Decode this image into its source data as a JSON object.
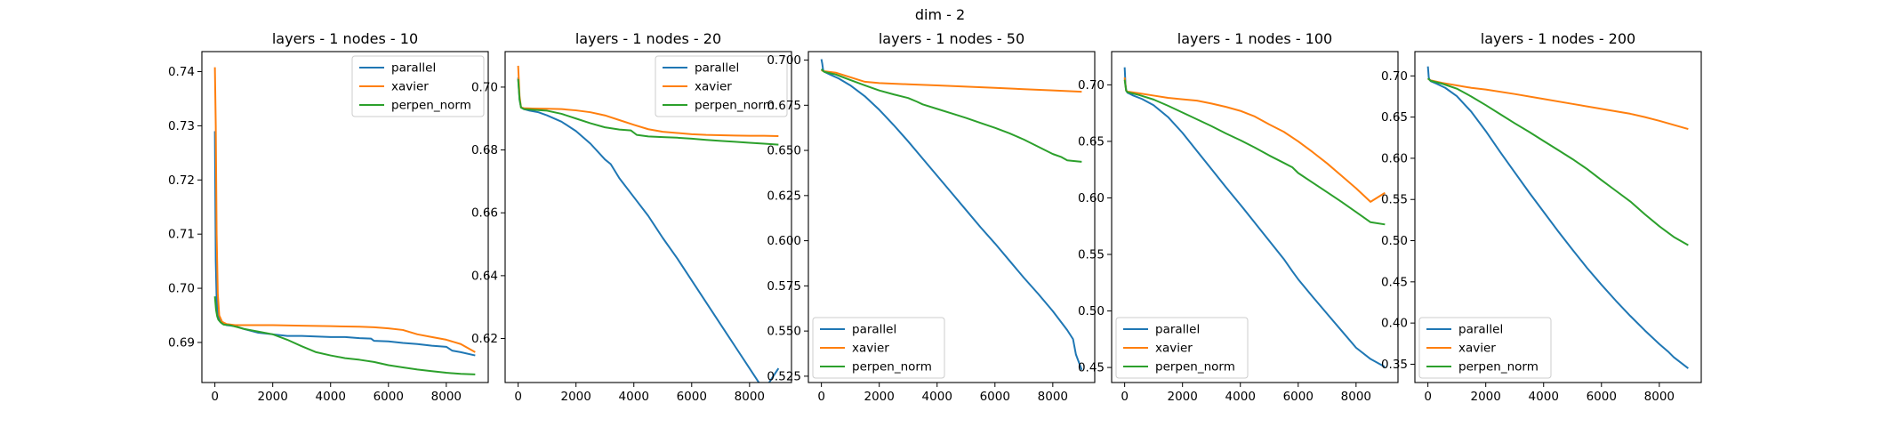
{
  "figure": {
    "suptitle": "dim - 2"
  },
  "colors": {
    "parallel": "#1f77b4",
    "xavier": "#ff7f0e",
    "perpen_norm": "#2ca02c"
  },
  "chart_data": [
    {
      "type": "line",
      "title": "layers - 1 nodes - 10",
      "xlim": [
        -450,
        9450
      ],
      "ylim": [
        0.6826,
        0.7437
      ],
      "xticks": [
        0,
        2000,
        4000,
        6000,
        8000
      ],
      "xtick_labels": [
        "0",
        "2000",
        "4000",
        "6000",
        "8000"
      ],
      "yticks": [
        0.69,
        0.7,
        0.71,
        0.72,
        0.73,
        0.74
      ],
      "ytick_labels": [
        "0.69",
        "0.70",
        "0.71",
        "0.72",
        "0.73",
        "0.74"
      ],
      "legend": "upper right",
      "series": [
        {
          "name": "parallel",
          "x": [
            0,
            30,
            60,
            100,
            150,
            250,
            400,
            700,
            1000,
            1500,
            2000,
            2500,
            3000,
            3500,
            4000,
            4500,
            5000,
            5400,
            5500,
            6000,
            6500,
            7000,
            7500,
            8000,
            8200,
            8500,
            9000
          ],
          "y": [
            0.729,
            0.705,
            0.698,
            0.695,
            0.6942,
            0.6935,
            0.6932,
            0.693,
            0.6925,
            0.6918,
            0.6915,
            0.6912,
            0.6912,
            0.6911,
            0.691,
            0.691,
            0.6908,
            0.6907,
            0.6903,
            0.6902,
            0.6899,
            0.6897,
            0.6894,
            0.6892,
            0.6885,
            0.6882,
            0.6876
          ]
        },
        {
          "name": "xavier",
          "x": [
            0,
            30,
            60,
            100,
            150,
            250,
            400,
            700,
            1000,
            2000,
            3000,
            4000,
            5000,
            5500,
            6000,
            6500,
            7000,
            7500,
            8000,
            8500,
            9000
          ],
          "y": [
            0.7408,
            0.73,
            0.71,
            0.699,
            0.695,
            0.6938,
            0.6934,
            0.6932,
            0.6932,
            0.6932,
            0.6931,
            0.693,
            0.6929,
            0.6928,
            0.6926,
            0.6923,
            0.6915,
            0.691,
            0.6905,
            0.6897,
            0.6882
          ]
        },
        {
          "name": "perpen_norm",
          "x": [
            0,
            40,
            80,
            120,
            200,
            300,
            500,
            800,
            1000,
            1500,
            2000,
            2500,
            3000,
            3500,
            4000,
            4500,
            5000,
            5500,
            6000,
            6500,
            7000,
            7500,
            8000,
            8500,
            9000
          ],
          "y": [
            0.6985,
            0.696,
            0.6948,
            0.6942,
            0.6937,
            0.6933,
            0.6932,
            0.6928,
            0.6925,
            0.692,
            0.6915,
            0.6905,
            0.6893,
            0.6882,
            0.6876,
            0.6871,
            0.6868,
            0.6864,
            0.6858,
            0.6854,
            0.685,
            0.6847,
            0.6844,
            0.6842,
            0.6841
          ]
        }
      ]
    },
    {
      "type": "line",
      "title": "layers - 1 nodes - 20",
      "xlim": [
        -450,
        9450
      ],
      "ylim": [
        0.606,
        0.7113
      ],
      "xticks": [
        0,
        2000,
        4000,
        6000,
        8000
      ],
      "xtick_labels": [
        "0",
        "2000",
        "4000",
        "6000",
        "8000"
      ],
      "yticks": [
        0.62,
        0.64,
        0.66,
        0.68,
        0.7
      ],
      "ytick_labels": [
        "0.62",
        "0.64",
        "0.66",
        "0.68",
        "0.70"
      ],
      "legend": "upper right",
      "series": [
        {
          "name": "parallel",
          "x": [
            0,
            50,
            100,
            200,
            400,
            700,
            1000,
            1500,
            2000,
            2500,
            3000,
            3200,
            3300,
            3500,
            4000,
            4500,
            5000,
            5500,
            6000,
            6500,
            7000,
            7500,
            8000,
            8500,
            9000
          ],
          "y": [
            0.703,
            0.696,
            0.6935,
            0.693,
            0.6925,
            0.692,
            0.691,
            0.689,
            0.686,
            0.682,
            0.677,
            0.6755,
            0.674,
            0.671,
            0.665,
            0.659,
            0.652,
            0.6455,
            0.6385,
            0.6315,
            0.6245,
            0.6175,
            0.6105,
            0.6035,
            0.6105
          ]
        },
        {
          "name": "xavier",
          "x": [
            0,
            50,
            100,
            200,
            500,
            1000,
            1500,
            2000,
            2500,
            3000,
            3500,
            4000,
            4500,
            5000,
            5500,
            6000,
            6500,
            7000,
            7500,
            8000,
            8500,
            9000
          ],
          "y": [
            0.7068,
            0.697,
            0.6935,
            0.6933,
            0.6932,
            0.6931,
            0.693,
            0.6926,
            0.692,
            0.691,
            0.6895,
            0.688,
            0.6866,
            0.6858,
            0.6854,
            0.685,
            0.6848,
            0.6847,
            0.6846,
            0.6845,
            0.6845,
            0.6844
          ]
        },
        {
          "name": "perpen_norm",
          "x": [
            0,
            50,
            100,
            200,
            500,
            1000,
            1500,
            2000,
            2500,
            3000,
            3500,
            3900,
            4100,
            4500,
            5000,
            5500,
            6000,
            6500,
            7000,
            7500,
            8000,
            8500,
            9000
          ],
          "y": [
            0.7025,
            0.696,
            0.6935,
            0.693,
            0.6928,
            0.6925,
            0.6915,
            0.69,
            0.6885,
            0.6872,
            0.6865,
            0.6862,
            0.6848,
            0.6843,
            0.6841,
            0.6839,
            0.6836,
            0.6832,
            0.6829,
            0.6826,
            0.6823,
            0.682,
            0.6817
          ]
        }
      ]
    },
    {
      "type": "line",
      "title": "layers - 1 nodes - 50",
      "xlim": [
        -450,
        9450
      ],
      "ylim": [
        0.5215,
        0.7047
      ],
      "xticks": [
        0,
        2000,
        4000,
        6000,
        8000
      ],
      "xtick_labels": [
        "0",
        "2000",
        "4000",
        "6000",
        "8000"
      ],
      "yticks": [
        0.525,
        0.55,
        0.575,
        0.6,
        0.625,
        0.65,
        0.675,
        0.7
      ],
      "ytick_labels": [
        "0.525",
        "0.550",
        "0.575",
        "0.600",
        "0.625",
        "0.650",
        "0.675",
        "0.700"
      ],
      "legend": "lower left",
      "series": [
        {
          "name": "parallel",
          "x": [
            0,
            30,
            60,
            100,
            300,
            600,
            1000,
            1500,
            2000,
            2500,
            3000,
            3500,
            4000,
            4500,
            5000,
            5500,
            6000,
            6500,
            7000,
            7500,
            8000,
            8500,
            8700,
            8800,
            9000
          ],
          "y": [
            0.7005,
            0.698,
            0.6945,
            0.6935,
            0.692,
            0.6898,
            0.686,
            0.68,
            0.6725,
            0.664,
            0.655,
            0.6455,
            0.636,
            0.6265,
            0.617,
            0.6075,
            0.5985,
            0.589,
            0.5795,
            0.5705,
            0.561,
            0.5505,
            0.5455,
            0.537,
            0.5285
          ]
        },
        {
          "name": "xavier",
          "x": [
            0,
            50,
            100,
            500,
            1000,
            1500,
            2000,
            3000,
            4000,
            5000,
            6000,
            7000,
            8000,
            9000
          ],
          "y": [
            0.6945,
            0.694,
            0.6938,
            0.693,
            0.6905,
            0.688,
            0.6873,
            0.6866,
            0.686,
            0.6853,
            0.6846,
            0.6839,
            0.6832,
            0.6825
          ]
        },
        {
          "name": "perpen_norm",
          "x": [
            0,
            50,
            100,
            500,
            1000,
            1500,
            2000,
            2500,
            3000,
            3300,
            3500,
            4000,
            4500,
            5000,
            5500,
            6000,
            6500,
            7000,
            7500,
            8000,
            8300,
            8500,
            8800,
            9000
          ],
          "y": [
            0.695,
            0.6942,
            0.6935,
            0.692,
            0.689,
            0.686,
            0.6832,
            0.681,
            0.679,
            0.677,
            0.6755,
            0.673,
            0.6705,
            0.668,
            0.6652,
            0.6625,
            0.6595,
            0.656,
            0.652,
            0.648,
            0.6463,
            0.6445,
            0.644,
            0.6437
          ]
        }
      ]
    },
    {
      "type": "line",
      "title": "layers - 1 nodes - 100",
      "xlim": [
        -450,
        9450
      ],
      "ylim": [
        0.4367,
        0.7294
      ],
      "xticks": [
        0,
        2000,
        4000,
        6000,
        8000
      ],
      "xtick_labels": [
        "0",
        "2000",
        "4000",
        "6000",
        "8000"
      ],
      "yticks": [
        0.45,
        0.5,
        0.55,
        0.6,
        0.65,
        0.7
      ],
      "ytick_labels": [
        "0.45",
        "0.50",
        "0.55",
        "0.60",
        "0.65",
        "0.70"
      ],
      "legend": "lower left",
      "series": [
        {
          "name": "parallel",
          "x": [
            0,
            30,
            60,
            100,
            300,
            600,
            1000,
            1500,
            2000,
            2500,
            3000,
            3500,
            4000,
            4500,
            5000,
            5500,
            5800,
            6000,
            6500,
            7000,
            7500,
            8000,
            8500,
            9000
          ],
          "y": [
            0.7155,
            0.7,
            0.6945,
            0.693,
            0.6905,
            0.6875,
            0.682,
            0.6715,
            0.6575,
            0.6415,
            0.6255,
            0.6095,
            0.594,
            0.578,
            0.562,
            0.546,
            0.535,
            0.528,
            0.5125,
            0.4975,
            0.4825,
            0.4675,
            0.4575,
            0.4505
          ]
        },
        {
          "name": "xavier",
          "x": [
            0,
            50,
            100,
            500,
            1000,
            1500,
            2000,
            2500,
            3000,
            3500,
            4000,
            4500,
            5000,
            5500,
            6000,
            6500,
            7000,
            7500,
            8000,
            8500,
            9000
          ],
          "y": [
            0.7065,
            0.695,
            0.694,
            0.6925,
            0.6905,
            0.6885,
            0.6872,
            0.686,
            0.6835,
            0.6805,
            0.677,
            0.672,
            0.665,
            0.6585,
            0.65,
            0.6405,
            0.6305,
            0.6195,
            0.6085,
            0.5965,
            0.6045
          ]
        },
        {
          "name": "perpen_norm",
          "x": [
            0,
            50,
            100,
            500,
            1000,
            1500,
            2000,
            2500,
            3000,
            3500,
            4000,
            4500,
            5000,
            5500,
            5800,
            6000,
            6500,
            7000,
            7500,
            8000,
            8500,
            9000
          ],
          "y": [
            0.7045,
            0.695,
            0.6935,
            0.691,
            0.687,
            0.6815,
            0.6755,
            0.6695,
            0.6635,
            0.657,
            0.651,
            0.6445,
            0.6375,
            0.631,
            0.627,
            0.622,
            0.6135,
            0.605,
            0.5965,
            0.5875,
            0.5785,
            0.5765
          ]
        }
      ]
    },
    {
      "type": "line",
      "title": "layers - 1 nodes - 200",
      "xlim": [
        -450,
        9450
      ],
      "ylim": [
        0.3278,
        0.7295
      ],
      "xticks": [
        0,
        2000,
        4000,
        6000,
        8000
      ],
      "xtick_labels": [
        "0",
        "2000",
        "4000",
        "6000",
        "8000"
      ],
      "yticks": [
        0.35,
        0.4,
        0.45,
        0.5,
        0.55,
        0.6,
        0.65,
        0.7
      ],
      "ytick_labels": [
        "0.35",
        "0.40",
        "0.45",
        "0.50",
        "0.55",
        "0.60",
        "0.65",
        "0.70"
      ],
      "legend": "lower left",
      "series": [
        {
          "name": "parallel",
          "x": [
            0,
            30,
            60,
            100,
            300,
            600,
            1000,
            1500,
            2000,
            2500,
            3000,
            3500,
            4000,
            4500,
            5000,
            5500,
            6000,
            6500,
            7000,
            7500,
            8000,
            8300,
            8500,
            9000
          ],
          "y": [
            0.7115,
            0.698,
            0.695,
            0.6935,
            0.6905,
            0.6855,
            0.6755,
            0.6565,
            0.633,
            0.6075,
            0.583,
            0.5585,
            0.535,
            0.5115,
            0.489,
            0.467,
            0.4465,
            0.427,
            0.4085,
            0.391,
            0.3745,
            0.3655,
            0.3585,
            0.345
          ]
        },
        {
          "name": "xavier",
          "x": [
            0,
            100,
            500,
            1000,
            1500,
            2000,
            3000,
            4000,
            5000,
            6000,
            7000,
            7500,
            8000,
            8500,
            9000
          ],
          "y": [
            0.6965,
            0.6945,
            0.6915,
            0.6885,
            0.6855,
            0.6835,
            0.678,
            0.672,
            0.666,
            0.66,
            0.654,
            0.65,
            0.6455,
            0.6405,
            0.6355
          ]
        },
        {
          "name": "perpen_norm",
          "x": [
            0,
            100,
            500,
            1000,
            1500,
            2000,
            2500,
            3000,
            3500,
            4000,
            4500,
            5000,
            5500,
            6000,
            6500,
            7000,
            7500,
            8000,
            8500,
            9000
          ],
          "y": [
            0.697,
            0.694,
            0.6905,
            0.6845,
            0.675,
            0.6645,
            0.6535,
            0.6425,
            0.632,
            0.621,
            0.61,
            0.599,
            0.587,
            0.5735,
            0.5605,
            0.5475,
            0.532,
            0.5175,
            0.5045,
            0.4945
          ]
        }
      ]
    }
  ]
}
